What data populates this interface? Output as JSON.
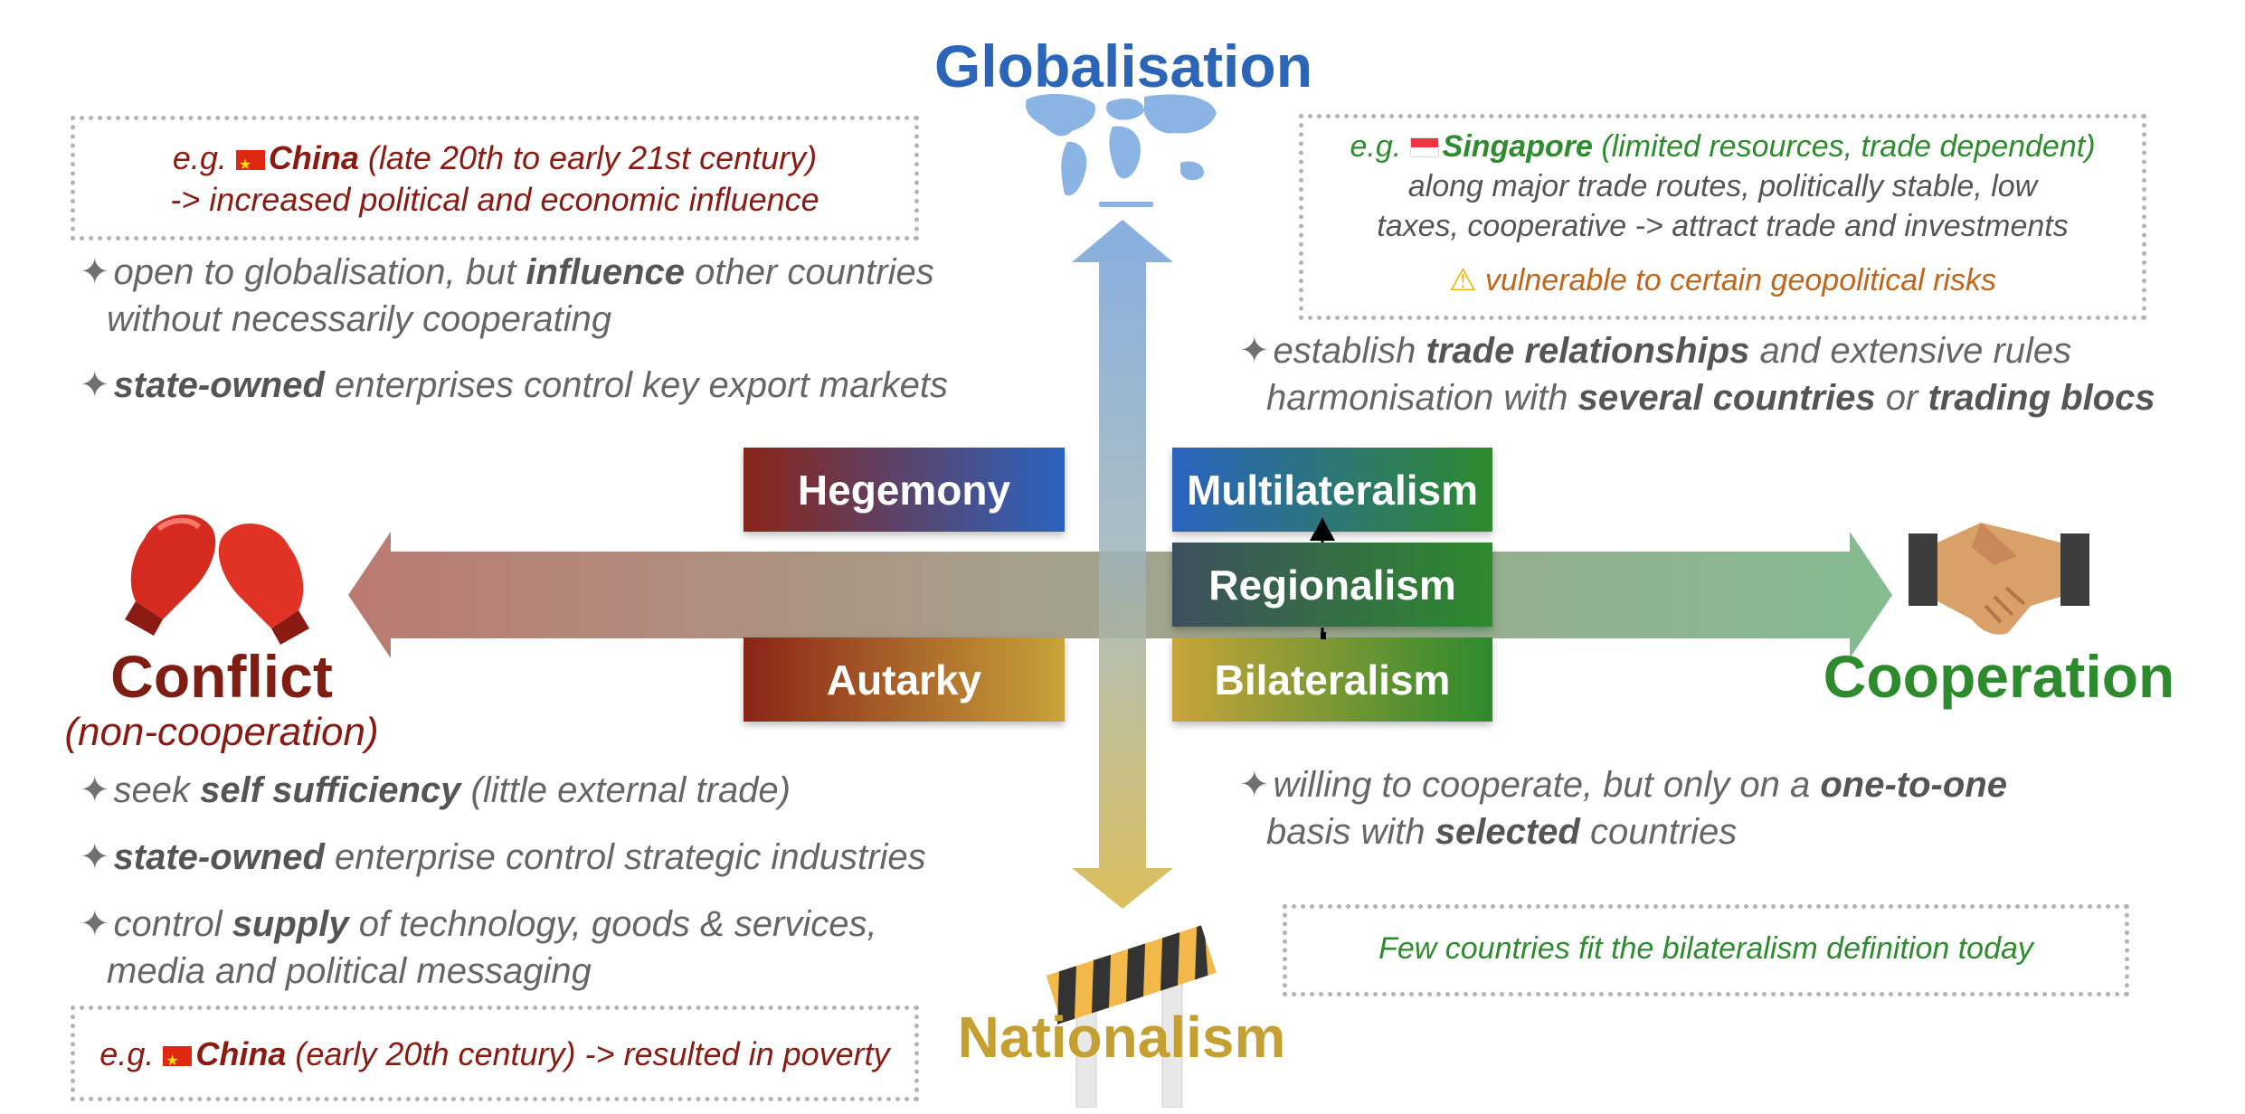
{
  "axes": {
    "top": "Globalisation",
    "bottom": "Nationalism",
    "left": "Conflict",
    "left_sub": "(non-cooperation)",
    "right": "Cooperation"
  },
  "quadrants": {
    "hegemony": "Hegemony",
    "autarky": "Autarky",
    "multilateralism": "Multilateralism",
    "regionalism": "Regionalism",
    "bilateralism": "Bilateralism"
  },
  "examples": {
    "china_late": {
      "prefix": "e.g. ",
      "country": "China",
      "rest": " (late 20th to early 21st century)",
      "line2": "-> increased political and economic influence"
    },
    "singapore": {
      "prefix": "e.g. ",
      "country": "Singapore",
      "rest": " (limited resources, trade dependent)",
      "line2": "along major trade routes, politically stable, low",
      "line3": "taxes, cooperative -> attract trade and investments",
      "warning": "vulnerable to certain geopolitical risks"
    },
    "china_early": {
      "prefix": "e.g. ",
      "country": "China",
      "rest": " (early 20th century) -> resulted in poverty"
    },
    "bilateral_note": "Few countries fit the bilateralism definition today"
  },
  "bullets": {
    "hegemony": [
      {
        "a": "open to globalisation, but ",
        "b": "influence",
        "c": " other countries",
        "line2": "without necessarily cooperating"
      },
      {
        "a": "",
        "b": "state-owned",
        "c": " enterprises control key export markets"
      }
    ],
    "multilateralism": [
      {
        "a": "establish ",
        "b": "trade relationships",
        "c": " and extensive rules",
        "l2a": "harmonisation with ",
        "l2b": "several countries",
        "l2c": " or ",
        "l2d": "trading blocs"
      }
    ],
    "autarky": [
      {
        "a": "seek ",
        "b": "self sufficiency",
        "c": " (little external trade)"
      },
      {
        "a": "",
        "b": "state-owned",
        "c": " enterprise control strategic industries"
      },
      {
        "a": "control ",
        "b": "supply",
        "c": " of technology, goods & services,",
        "line2": "media and political messaging"
      }
    ],
    "bilateralism": [
      {
        "a": "willing to cooperate, but only on a ",
        "b": "one-to-one",
        "l2a": "basis with ",
        "l2b": "selected",
        "l2c": " countries"
      }
    ]
  },
  "colors": {
    "globalisation": "#2a65b8",
    "nationalism": "#c4a033",
    "conflict": "#7f1d12",
    "cooperation": "#2d8a2d",
    "example_red": "#8b1a12",
    "example_green": "#2e8b2e",
    "warning_orange": "#c0661c"
  },
  "icons": {
    "top": "world-map-icon",
    "bottom": "roadblock-barrier-icon",
    "left": "boxing-gloves-icon",
    "right": "handshake-icon",
    "warning": "warning-icon"
  }
}
